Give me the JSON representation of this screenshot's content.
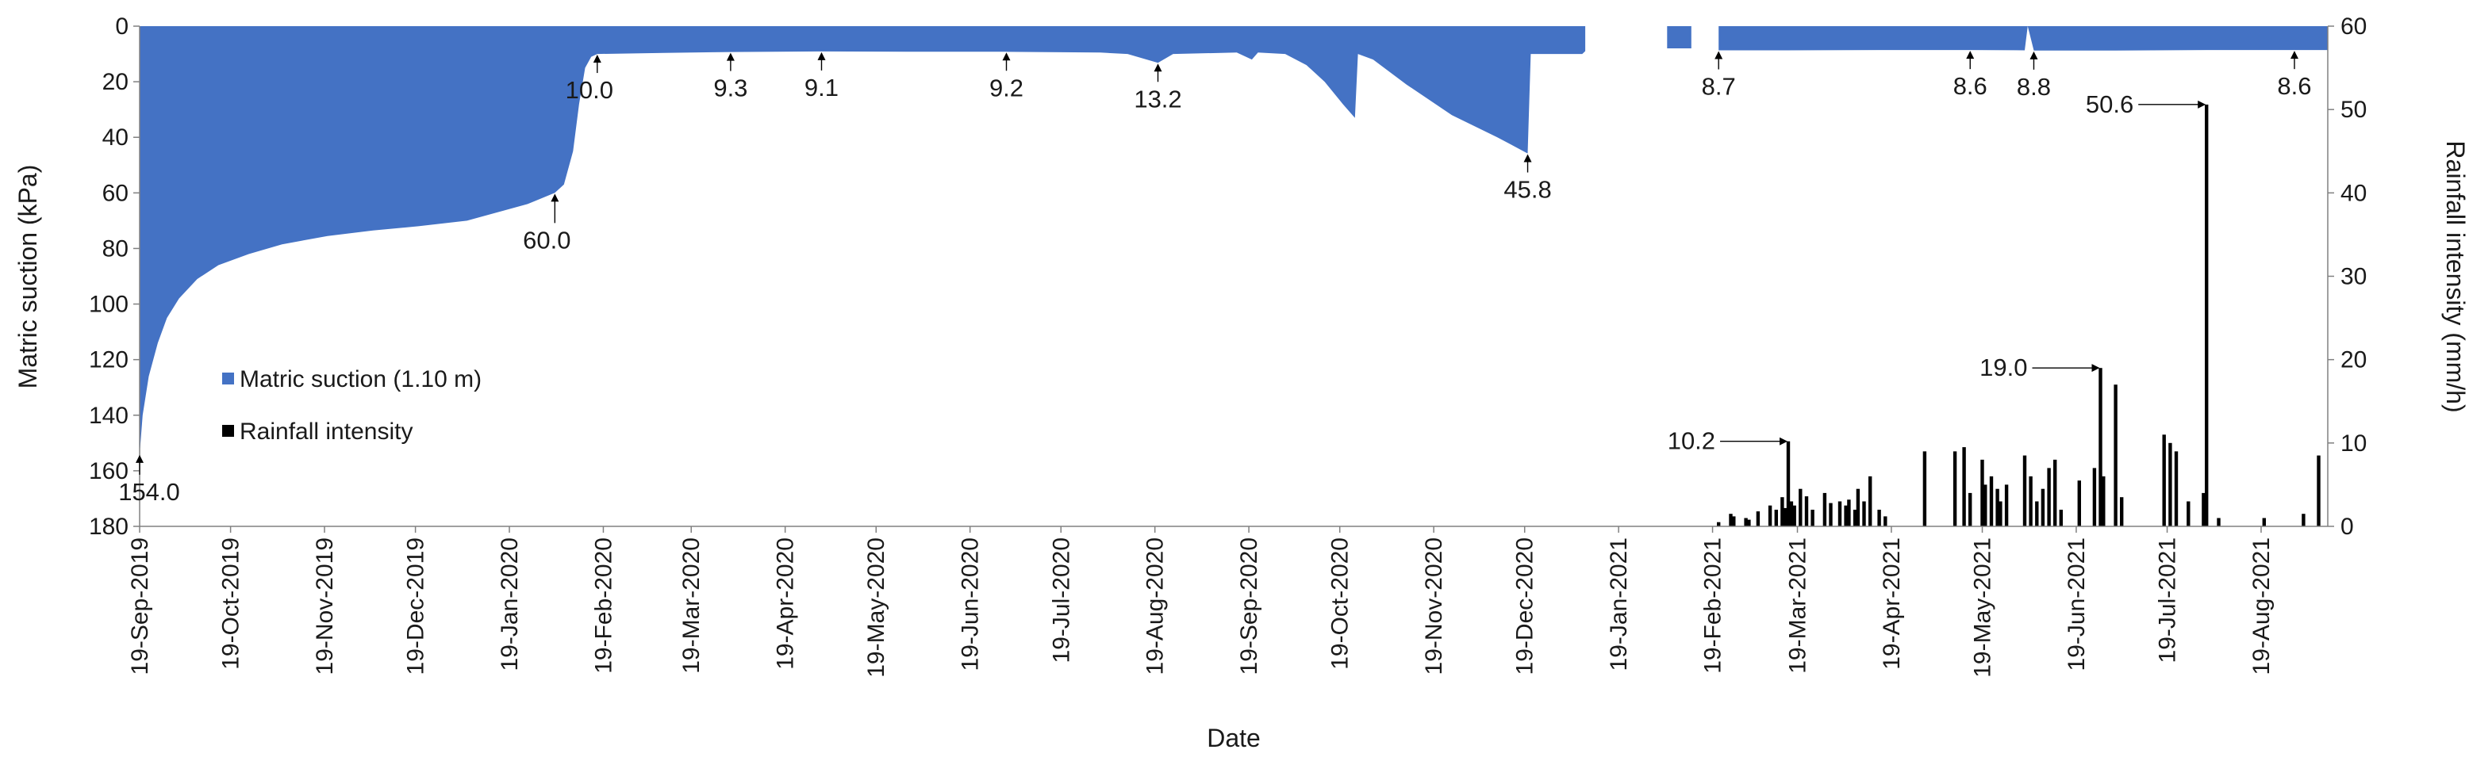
{
  "chart_data": {
    "type": "bar",
    "xlabel": "Date",
    "ylabel_left": "Matric suction (kPa)",
    "ylabel_right": "Rainfall intensity (mm/h)",
    "x_range": [
      "2019-09-19",
      "2021-09-10"
    ],
    "ylim_left": [
      0,
      180
    ],
    "ylim_right": [
      0,
      60
    ],
    "left_axis_inverted": true,
    "grid": false,
    "legend_position": "lower-left",
    "colors": {
      "suction": "#4472C4",
      "rainfall": "#000000",
      "axis": "#808080"
    },
    "x_ticks": [
      "19-Sep-2019",
      "19-Oct-2019",
      "19-Nov-2019",
      "19-Dec-2019",
      "19-Jan-2020",
      "19-Feb-2020",
      "19-Mar-2020",
      "19-Apr-2020",
      "19-May-2020",
      "19-Jun-2020",
      "19-Jul-2020",
      "19-Aug-2020",
      "19-Sep-2020",
      "19-Oct-2020",
      "19-Nov-2020",
      "19-Dec-2020",
      "19-Jan-2021",
      "19-Feb-2021",
      "19-Mar-2021",
      "19-Apr-2021",
      "19-May-2021",
      "19-Jun-2021",
      "19-Jul-2021",
      "19-Aug-2021"
    ],
    "x_tick_dates": [
      "2019-09-19",
      "2019-10-19",
      "2019-11-19",
      "2019-12-19",
      "2020-01-19",
      "2020-02-19",
      "2020-03-19",
      "2020-04-19",
      "2020-05-19",
      "2020-06-19",
      "2020-07-19",
      "2020-08-19",
      "2020-09-19",
      "2020-10-19",
      "2020-11-19",
      "2020-12-19",
      "2021-01-19",
      "2021-02-19",
      "2021-03-19",
      "2021-04-19",
      "2021-05-19",
      "2021-06-19",
      "2021-07-19",
      "2021-08-19"
    ],
    "y_ticks_left": [
      0,
      20,
      40,
      60,
      80,
      100,
      120,
      140,
      160,
      180
    ],
    "y_ticks_right": [
      0,
      10,
      20,
      30,
      40,
      50,
      60
    ],
    "series": [
      {
        "name": "Matric suction (1.10 m)",
        "kind": "area",
        "axis": "left",
        "points": [
          [
            "2019-09-19",
            154
          ],
          [
            "2019-09-20",
            140
          ],
          [
            "2019-09-22",
            126
          ],
          [
            "2019-09-25",
            114
          ],
          [
            "2019-09-28",
            105
          ],
          [
            "2019-10-02",
            98
          ],
          [
            "2019-10-08",
            91
          ],
          [
            "2019-10-15",
            86
          ],
          [
            "2019-10-25",
            82
          ],
          [
            "2019-11-05",
            78.5
          ],
          [
            "2019-11-20",
            75.5
          ],
          [
            "2019-12-05",
            73.5
          ],
          [
            "2019-12-20",
            72
          ],
          [
            "2020-01-05",
            70
          ],
          [
            "2020-01-15",
            67
          ],
          [
            "2020-01-25",
            64
          ],
          [
            "2020-02-03",
            60
          ],
          [
            "2020-02-06",
            57
          ],
          [
            "2020-02-09",
            45
          ],
          [
            "2020-02-11",
            28
          ],
          [
            "2020-02-13",
            15
          ],
          [
            "2020-02-15",
            11
          ],
          [
            "2020-02-17",
            10
          ],
          [
            "2020-03-10",
            9.6
          ],
          [
            "2020-04-01",
            9.3
          ],
          [
            "2020-05-01",
            9.1
          ],
          [
            "2020-06-01",
            9.2
          ],
          [
            "2020-07-01",
            9.2
          ],
          [
            "2020-08-01",
            9.5
          ],
          [
            "2020-08-10",
            10
          ],
          [
            "2020-08-20",
            13.2
          ],
          [
            "2020-08-25",
            10
          ],
          [
            "2020-09-15",
            9.5
          ],
          [
            "2020-09-20",
            12
          ],
          [
            "2020-09-22",
            9.5
          ],
          [
            "2020-10-01",
            10
          ],
          [
            "2020-10-08",
            14
          ],
          [
            "2020-10-14",
            20
          ],
          [
            "2020-10-20",
            28
          ],
          [
            "2020-10-24",
            33
          ],
          [
            "2020-10-25",
            10
          ],
          [
            "2020-10-30",
            12
          ],
          [
            "2020-11-10",
            21
          ],
          [
            "2020-11-25",
            32
          ],
          [
            "2020-12-10",
            40
          ],
          [
            "2020-12-20",
            45.8
          ],
          [
            "2020-12-21",
            10
          ],
          [
            "2021-01-07",
            10
          ],
          [
            "2021-01-08",
            9
          ]
        ],
        "segments_after_gap": [
          [
            [
              "2021-02-04",
              0
            ],
            [
              "2021-02-04",
              8
            ],
            [
              "2021-02-12",
              8
            ]
          ],
          [
            [
              "2021-02-21",
              8.7
            ],
            [
              "2021-03-15",
              8.7
            ],
            [
              "2021-04-15",
              8.6
            ],
            [
              "2021-05-15",
              8.6
            ],
            [
              "2021-06-02",
              8.7
            ],
            [
              "2021-06-03",
              0
            ],
            [
              "2021-06-05",
              8.8
            ],
            [
              "2021-07-01",
              8.8
            ],
            [
              "2021-08-01",
              8.6
            ],
            [
              "2021-09-10",
              8.6
            ]
          ]
        ]
      },
      {
        "name": "Rainfall intensity",
        "kind": "bar",
        "axis": "right",
        "points": [
          [
            "2021-02-21",
            0.5
          ],
          [
            "2021-02-25",
            1.5
          ],
          [
            "2021-02-26",
            1.2
          ],
          [
            "2021-03-02",
            1.0
          ],
          [
            "2021-03-03",
            0.8
          ],
          [
            "2021-03-06",
            1.8
          ],
          [
            "2021-03-10",
            2.5
          ],
          [
            "2021-03-12",
            2.0
          ],
          [
            "2021-03-14",
            3.5
          ],
          [
            "2021-03-15",
            2.2
          ],
          [
            "2021-03-16",
            10.2
          ],
          [
            "2021-03-17",
            3.0
          ],
          [
            "2021-03-18",
            2.5
          ],
          [
            "2021-03-20",
            4.5
          ],
          [
            "2021-03-22",
            3.6
          ],
          [
            "2021-03-24",
            2.0
          ],
          [
            "2021-03-28",
            4.0
          ],
          [
            "2021-03-30",
            2.8
          ],
          [
            "2021-04-02",
            3.0
          ],
          [
            "2021-04-04",
            2.5
          ],
          [
            "2021-04-05",
            3.2
          ],
          [
            "2021-04-07",
            2.0
          ],
          [
            "2021-04-08",
            4.5
          ],
          [
            "2021-04-10",
            3.0
          ],
          [
            "2021-04-12",
            6.0
          ],
          [
            "2021-04-15",
            2.0
          ],
          [
            "2021-04-17",
            1.2
          ],
          [
            "2021-04-30",
            9.0
          ],
          [
            "2021-05-10",
            9.0
          ],
          [
            "2021-05-13",
            9.5
          ],
          [
            "2021-05-15",
            4.0
          ],
          [
            "2021-05-19",
            8.0
          ],
          [
            "2021-05-20",
            5.0
          ],
          [
            "2021-05-22",
            6.0
          ],
          [
            "2021-05-24",
            4.5
          ],
          [
            "2021-05-25",
            3.0
          ],
          [
            "2021-05-27",
            5.0
          ],
          [
            "2021-06-02",
            8.5
          ],
          [
            "2021-06-04",
            6.0
          ],
          [
            "2021-06-06",
            3.0
          ],
          [
            "2021-06-08",
            4.5
          ],
          [
            "2021-06-10",
            7.0
          ],
          [
            "2021-06-12",
            8.0
          ],
          [
            "2021-06-14",
            2.0
          ],
          [
            "2021-06-20",
            5.5
          ],
          [
            "2021-06-25",
            7.0
          ],
          [
            "2021-06-27",
            19.0
          ],
          [
            "2021-06-28",
            6.0
          ],
          [
            "2021-07-02",
            17.0
          ],
          [
            "2021-07-04",
            3.5
          ],
          [
            "2021-07-18",
            11.0
          ],
          [
            "2021-07-20",
            10.0
          ],
          [
            "2021-07-22",
            9.0
          ],
          [
            "2021-07-26",
            3.0
          ],
          [
            "2021-07-31",
            4.0
          ],
          [
            "2021-08-01",
            50.6
          ],
          [
            "2021-08-05",
            1.0
          ],
          [
            "2021-08-20",
            1.0
          ],
          [
            "2021-09-02",
            1.5
          ],
          [
            "2021-09-07",
            8.5
          ]
        ]
      }
    ],
    "annotations": [
      {
        "label": "154.0",
        "date": "2019-09-19",
        "value": 154,
        "axis": "left",
        "text_dx": 12,
        "text_dy": 58
      },
      {
        "label": "60.0",
        "date": "2020-02-03",
        "value": 60,
        "axis": "left",
        "text_dx": -10,
        "text_dy": 70
      },
      {
        "label": "10.0",
        "date": "2020-02-17",
        "value": 10,
        "axis": "left",
        "text_dx": -10,
        "text_dy": 56
      },
      {
        "label": "9.3",
        "date": "2020-04-01",
        "value": 9.3,
        "axis": "left",
        "text_dx": 0,
        "text_dy": 56
      },
      {
        "label": "9.1",
        "date": "2020-05-01",
        "value": 9.1,
        "axis": "left",
        "text_dx": 0,
        "text_dy": 56
      },
      {
        "label": "9.2",
        "date": "2020-07-01",
        "value": 9.2,
        "axis": "left",
        "text_dx": 0,
        "text_dy": 56
      },
      {
        "label": "13.2",
        "date": "2020-08-20",
        "value": 13.2,
        "axis": "left",
        "text_dx": 0,
        "text_dy": 56
      },
      {
        "label": "45.8",
        "date": "2020-12-20",
        "value": 45.8,
        "axis": "left",
        "text_dx": 0,
        "text_dy": 56
      },
      {
        "label": "8.7",
        "date": "2021-02-21",
        "value": 8.7,
        "axis": "left",
        "text_dx": 0,
        "text_dy": 56
      },
      {
        "label": "8.6",
        "date": "2021-05-15",
        "value": 8.6,
        "axis": "left",
        "text_dx": 0,
        "text_dy": 56
      },
      {
        "label": "8.8",
        "date": "2021-06-05",
        "value": 8.8,
        "axis": "left",
        "text_dx": 0,
        "text_dy": 56
      },
      {
        "label": "8.6",
        "date": "2021-08-30",
        "value": 8.6,
        "axis": "left",
        "text_dx": 0,
        "text_dy": 56
      },
      {
        "label": "10.2",
        "date": "2021-03-16",
        "value": 10.2,
        "axis": "right",
        "side": "left"
      },
      {
        "label": "19.0",
        "date": "2021-06-27",
        "value": 19.0,
        "axis": "right",
        "side": "left"
      },
      {
        "label": "50.6",
        "date": "2021-08-01",
        "value": 50.6,
        "axis": "right",
        "side": "left"
      }
    ]
  }
}
